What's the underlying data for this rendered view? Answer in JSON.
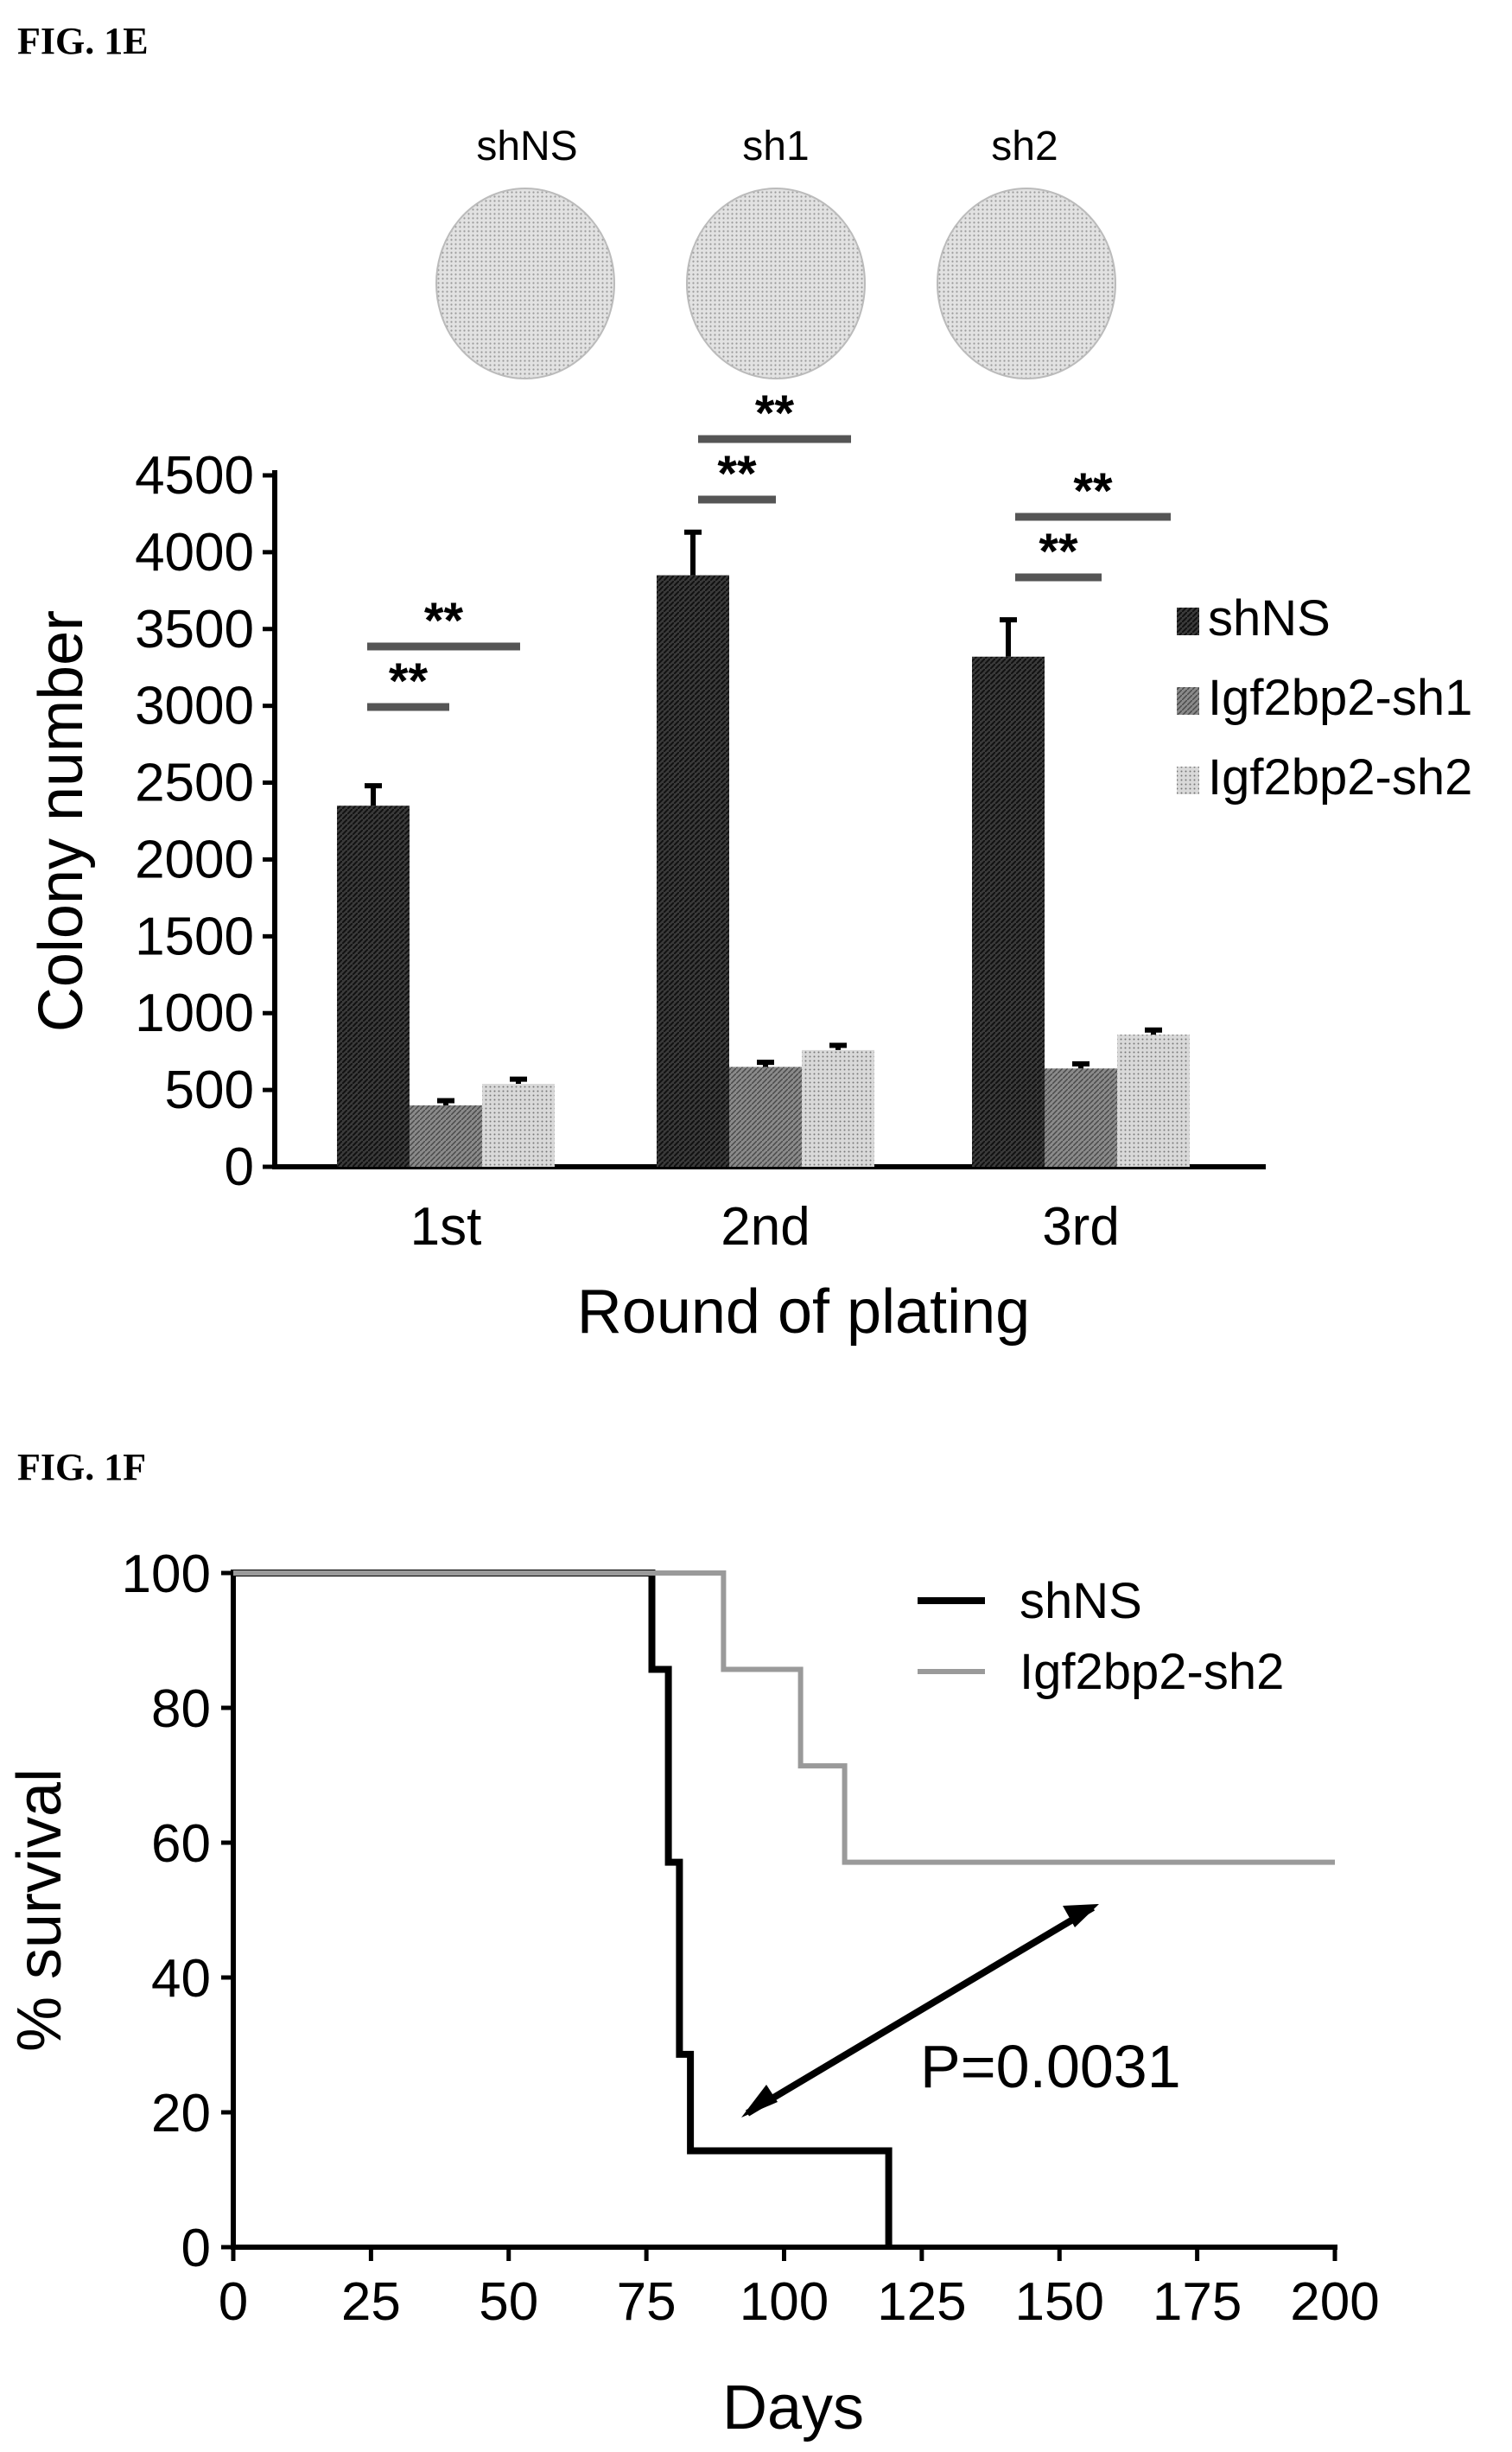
{
  "fig_1e": {
    "label": "FIG. 1E",
    "dishes": [
      "shNS",
      "sh1",
      "sh2"
    ],
    "significance": "**"
  },
  "fig_1f": {
    "label": "FIG. 1F",
    "p_value": "P=0.0031"
  },
  "colors": {
    "shNS": "#2a2a2a",
    "igf2bp2_sh1": "#6f6f6f",
    "igf2bp2_sh2": "#bdbdbd",
    "axis": "#000000"
  },
  "chart_data": [
    {
      "type": "bar",
      "title": "",
      "xlabel": "Round of plating",
      "ylabel": "Colony number",
      "categories": [
        "1st",
        "2nd",
        "3rd"
      ],
      "ylim": [
        0,
        4500
      ],
      "yticks": [
        0,
        500,
        1000,
        1500,
        2000,
        2500,
        3000,
        3500,
        4000,
        4500
      ],
      "legend_position": "right",
      "grid": false,
      "series": [
        {
          "name": "shNS",
          "values": [
            2350,
            3850,
            3320
          ],
          "errors": [
            130,
            280,
            240
          ]
        },
        {
          "name": "Igf2bp2-sh1",
          "values": [
            400,
            650,
            640
          ],
          "errors": [
            30,
            30,
            30
          ]
        },
        {
          "name": "Igf2bp2-sh2",
          "values": [
            540,
            760,
            860
          ],
          "errors": [
            30,
            30,
            30
          ]
        }
      ]
    },
    {
      "type": "line",
      "title": "",
      "xlabel": "Days",
      "ylabel": "% survival",
      "xlim": [
        0,
        200
      ],
      "ylim": [
        0,
        100
      ],
      "xticks": [
        0,
        25,
        50,
        75,
        100,
        125,
        150,
        175,
        200
      ],
      "yticks": [
        0,
        20,
        40,
        60,
        80,
        100
      ],
      "legend_position": "top-right",
      "grid": false,
      "step": true,
      "series": [
        {
          "name": "shNS",
          "x": [
            0,
            76,
            76,
            79,
            79,
            81,
            81,
            83,
            83,
            119,
            119
          ],
          "y": [
            100,
            100,
            85.7,
            85.7,
            57.1,
            57.1,
            28.6,
            28.6,
            14.3,
            14.3,
            0
          ]
        },
        {
          "name": "Igf2bp2-sh2",
          "x": [
            0,
            89,
            89,
            103,
            103,
            111,
            111,
            200
          ],
          "y": [
            100,
            100,
            85.7,
            85.7,
            71.4,
            71.4,
            57.1,
            57.1
          ]
        }
      ]
    }
  ]
}
